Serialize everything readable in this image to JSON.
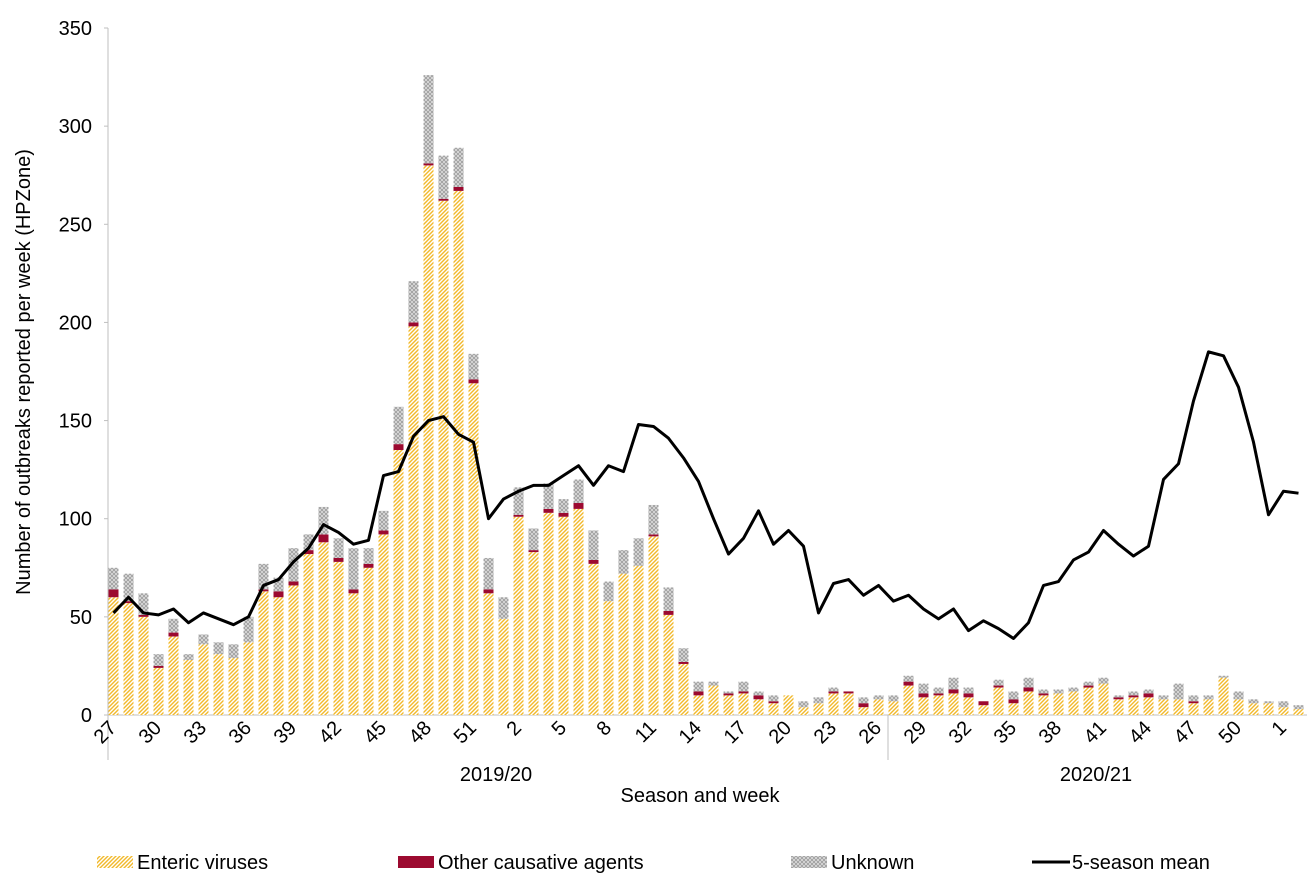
{
  "chart_data": {
    "type": "bar",
    "y_label": "Number of outbreaks reported per week (HPZone)",
    "x_label": "Season and week",
    "categories": [
      "27",
      null,
      null,
      "30",
      null,
      null,
      "33",
      null,
      null,
      "36",
      null,
      null,
      "39",
      null,
      null,
      "42",
      null,
      null,
      "45",
      null,
      null,
      "48",
      null,
      null,
      "51",
      null,
      null,
      "2",
      null,
      null,
      "5",
      null,
      null,
      "8",
      null,
      null,
      "11",
      null,
      null,
      "14",
      null,
      null,
      "17",
      null,
      null,
      "20",
      null,
      null,
      "23",
      null,
      null,
      "26",
      null,
      null,
      "29",
      null,
      null,
      "32",
      null,
      null,
      "35",
      null,
      null,
      "38",
      null,
      null,
      "41",
      null,
      null,
      "44",
      null,
      null,
      "47",
      null,
      null,
      "50",
      null,
      null,
      "1",
      null
    ],
    "groups": [
      {
        "label": "2019/20",
        "count": 52
      },
      {
        "label": "2020/21",
        "count": 28
      }
    ],
    "ylim": [
      0,
      350
    ],
    "yticks": [
      0,
      50,
      100,
      150,
      200,
      250,
      300,
      350
    ],
    "grid": false,
    "series": [
      {
        "name": "Enteric viruses",
        "type": "bar",
        "pattern": "diagonal",
        "color": "#f2b92c",
        "values": [
          60,
          57,
          50,
          24,
          40,
          28,
          36,
          31,
          29,
          37,
          63,
          60,
          66,
          82,
          88,
          78,
          62,
          75,
          92,
          135,
          198,
          280,
          262,
          267,
          169,
          62,
          49,
          101,
          83,
          103,
          101,
          105,
          77,
          58,
          72,
          76,
          91,
          51,
          26,
          10,
          15,
          10,
          11,
          8,
          6,
          10,
          4,
          6,
          11,
          11,
          4,
          8,
          7,
          15,
          9,
          10,
          11,
          9,
          5,
          14,
          6,
          12,
          10,
          11,
          12,
          14,
          16,
          8,
          9,
          9,
          8,
          8,
          6,
          8,
          19,
          8,
          6,
          6,
          4,
          3
        ]
      },
      {
        "name": "Other causative agents",
        "type": "bar",
        "pattern": "solid",
        "color": "#9c0a30",
        "values": [
          4,
          1,
          1,
          1,
          2,
          0,
          0,
          0,
          0,
          0,
          1,
          3,
          2,
          2,
          4,
          2,
          2,
          2,
          2,
          3,
          2,
          1,
          1,
          2,
          2,
          2,
          0,
          1,
          1,
          2,
          2,
          3,
          2,
          0,
          0,
          0,
          1,
          2,
          1,
          2,
          0,
          1,
          1,
          2,
          1,
          0,
          0,
          0,
          1,
          1,
          2,
          0,
          0,
          2,
          2,
          1,
          2,
          2,
          2,
          1,
          2,
          2,
          1,
          0,
          0,
          1,
          0,
          1,
          1,
          2,
          0,
          0,
          1,
          0,
          0,
          0,
          0,
          0,
          0,
          0
        ]
      },
      {
        "name": "Unknown",
        "type": "bar",
        "pattern": "crosshatch",
        "color": "#a6a6a6",
        "values": [
          11,
          14,
          11,
          6,
          7,
          3,
          5,
          6,
          7,
          13,
          13,
          7,
          17,
          8,
          14,
          10,
          21,
          8,
          10,
          19,
          21,
          45,
          22,
          20,
          13,
          16,
          11,
          14,
          11,
          13,
          7,
          12,
          15,
          10,
          12,
          14,
          15,
          12,
          7,
          5,
          2,
          1,
          5,
          2,
          3,
          0,
          3,
          3,
          2,
          0,
          3,
          2,
          3,
          3,
          5,
          3,
          6,
          3,
          0,
          3,
          4,
          5,
          2,
          2,
          2,
          2,
          3,
          1,
          2,
          2,
          2,
          8,
          3,
          2,
          1,
          4,
          2,
          1,
          3,
          2
        ]
      },
      {
        "name": "5-season mean",
        "type": "line",
        "color": "#000000",
        "values": [
          52,
          60,
          52,
          51,
          54,
          47,
          52,
          49,
          46,
          50,
          66,
          69,
          78,
          85,
          97,
          93,
          87,
          89,
          122,
          124,
          142,
          150,
          152,
          143,
          139,
          100,
          110,
          114,
          117,
          117,
          122,
          127,
          117,
          127,
          124,
          148,
          147,
          141,
          131,
          119,
          100,
          82,
          90,
          104,
          87,
          94,
          86,
          52,
          67,
          69,
          61,
          66,
          58,
          61,
          54,
          49,
          54,
          43,
          48,
          44,
          39,
          47,
          66,
          68,
          79,
          83,
          94,
          87,
          81,
          86,
          120,
          128,
          160,
          185,
          183,
          167,
          139,
          102,
          114,
          113
        ]
      }
    ]
  }
}
